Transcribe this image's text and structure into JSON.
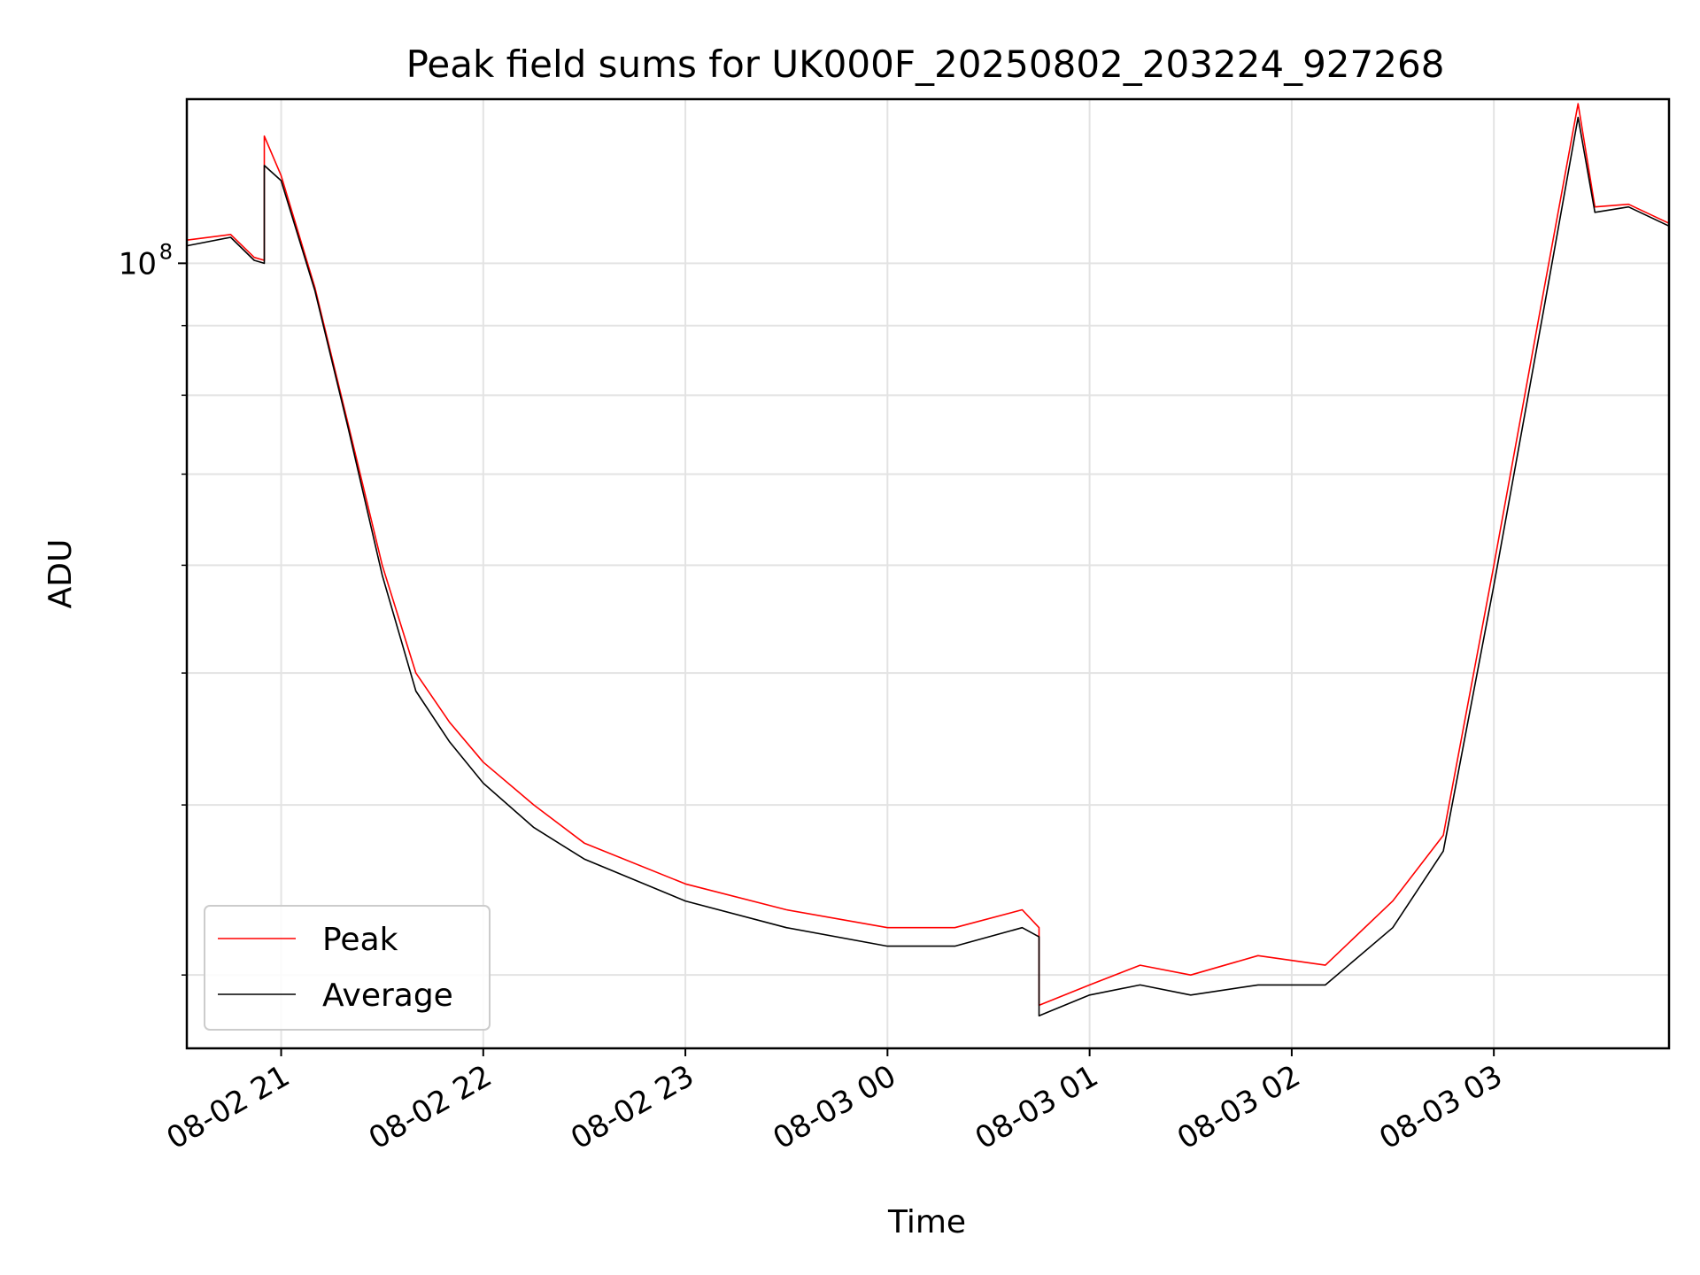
{
  "chart_data": {
    "type": "line",
    "title": "Peak field sums for UK000F_20250802_203224_927268",
    "xlabel": "Time",
    "ylabel": "ADU",
    "yscale": "log",
    "grid": true,
    "legend_position": "lower-left",
    "xlim": [
      "2025-08-02 20:32",
      "2025-08-03 03:52"
    ],
    "ylim": [
      26500000,
      132000000
    ],
    "x_ticks": [
      {
        "value": "2025-08-02 21:00",
        "label": "08-02 21"
      },
      {
        "value": "2025-08-02 22:00",
        "label": "08-02 22"
      },
      {
        "value": "2025-08-02 23:00",
        "label": "08-02 23"
      },
      {
        "value": "2025-08-03 00:00",
        "label": "08-03 00"
      },
      {
        "value": "2025-08-03 01:00",
        "label": "08-03 01"
      },
      {
        "value": "2025-08-03 02:00",
        "label": "08-03 02"
      },
      {
        "value": "2025-08-03 03:00",
        "label": "08-03 03"
      }
    ],
    "y_major_ticks": [
      {
        "value": 100000000,
        "label_base": "10",
        "label_exp": "8"
      }
    ],
    "y_minor_ticks": [
      30000000,
      40000000,
      50000000,
      60000000,
      70000000,
      80000000,
      90000000
    ],
    "series": [
      {
        "name": "Peak",
        "color": "#ff0000",
        "points": [
          [
            "2025-08-02 20:32",
            104000000
          ],
          [
            "2025-08-02 20:45",
            105000000
          ],
          [
            "2025-08-02 20:52",
            101000000
          ],
          [
            "2025-08-02 20:55",
            100500000
          ],
          [
            "2025-08-02 20:55",
            124000000
          ],
          [
            "2025-08-02 21:00",
            116000000
          ],
          [
            "2025-08-02 21:10",
            96000000
          ],
          [
            "2025-08-02 21:20",
            76000000
          ],
          [
            "2025-08-02 21:30",
            60000000
          ],
          [
            "2025-08-02 21:40",
            50000000
          ],
          [
            "2025-08-02 21:50",
            46000000
          ],
          [
            "2025-08-02 22:00",
            43000000
          ],
          [
            "2025-08-02 22:15",
            40000000
          ],
          [
            "2025-08-02 22:30",
            37500000
          ],
          [
            "2025-08-02 23:00",
            35000000
          ],
          [
            "2025-08-02 23:30",
            33500000
          ],
          [
            "2025-08-03 00:00",
            32500000
          ],
          [
            "2025-08-03 00:20",
            32500000
          ],
          [
            "2025-08-03 00:40",
            33500000
          ],
          [
            "2025-08-03 00:45",
            32500000
          ],
          [
            "2025-08-03 00:45",
            28500000
          ],
          [
            "2025-08-03 01:00",
            29500000
          ],
          [
            "2025-08-03 01:15",
            30500000
          ],
          [
            "2025-08-03 01:30",
            30000000
          ],
          [
            "2025-08-03 01:50",
            31000000
          ],
          [
            "2025-08-03 02:10",
            30500000
          ],
          [
            "2025-08-03 02:30",
            34000000
          ],
          [
            "2025-08-03 02:45",
            38000000
          ],
          [
            "2025-08-03 03:00",
            60000000
          ],
          [
            "2025-08-03 03:15",
            96000000
          ],
          [
            "2025-08-03 03:25",
            131000000
          ],
          [
            "2025-08-03 03:30",
            110000000
          ],
          [
            "2025-08-03 03:40",
            110500000
          ],
          [
            "2025-08-03 03:52",
            107000000
          ]
        ]
      },
      {
        "name": "Average",
        "color": "#000000",
        "points": [
          [
            "2025-08-02 20:32",
            103000000
          ],
          [
            "2025-08-02 20:45",
            104500000
          ],
          [
            "2025-08-02 20:52",
            100500000
          ],
          [
            "2025-08-02 20:55",
            100000000
          ],
          [
            "2025-08-02 20:55",
            118000000
          ],
          [
            "2025-08-02 21:00",
            115000000
          ],
          [
            "2025-08-02 21:10",
            95500000
          ],
          [
            "2025-08-02 21:20",
            75500000
          ],
          [
            "2025-08-02 21:30",
            59000000
          ],
          [
            "2025-08-02 21:40",
            48500000
          ],
          [
            "2025-08-02 21:50",
            44500000
          ],
          [
            "2025-08-02 22:00",
            41500000
          ],
          [
            "2025-08-02 22:15",
            38500000
          ],
          [
            "2025-08-02 22:30",
            36500000
          ],
          [
            "2025-08-02 23:00",
            34000000
          ],
          [
            "2025-08-02 23:30",
            32500000
          ],
          [
            "2025-08-03 00:00",
            31500000
          ],
          [
            "2025-08-03 00:20",
            31500000
          ],
          [
            "2025-08-03 00:40",
            32500000
          ],
          [
            "2025-08-03 00:45",
            32000000
          ],
          [
            "2025-08-03 00:45",
            28000000
          ],
          [
            "2025-08-03 01:00",
            29000000
          ],
          [
            "2025-08-03 01:15",
            29500000
          ],
          [
            "2025-08-03 01:30",
            29000000
          ],
          [
            "2025-08-03 01:50",
            29500000
          ],
          [
            "2025-08-03 02:10",
            29500000
          ],
          [
            "2025-08-03 02:30",
            32500000
          ],
          [
            "2025-08-03 02:45",
            37000000
          ],
          [
            "2025-08-03 03:00",
            58000000
          ],
          [
            "2025-08-03 03:15",
            93000000
          ],
          [
            "2025-08-03 03:25",
            128000000
          ],
          [
            "2025-08-03 03:30",
            109000000
          ],
          [
            "2025-08-03 03:40",
            110000000
          ],
          [
            "2025-08-03 03:52",
            106500000
          ]
        ]
      }
    ]
  }
}
